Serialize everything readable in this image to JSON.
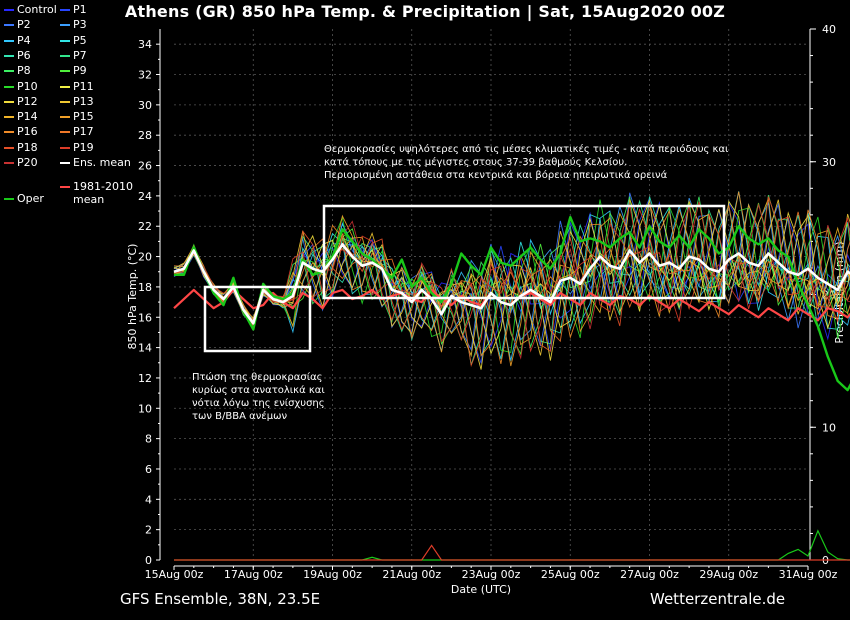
{
  "title": "Athens  (GR)  850 hPa Temp. & Precipitation | Sat, 15Aug2020 00Z",
  "footer": {
    "left": "GFS Ensemble, 38N, 23.5E",
    "right": "Wetterzentrale.de"
  },
  "legend": [
    {
      "name": "Control",
      "color": "#2828ff"
    },
    {
      "name": "P1",
      "color": "#2846ff"
    },
    {
      "name": "P2",
      "color": "#3c78ff"
    },
    {
      "name": "P3",
      "color": "#3ca0ff"
    },
    {
      "name": "P4",
      "color": "#32c8ff"
    },
    {
      "name": "P5",
      "color": "#32e6e6"
    },
    {
      "name": "P6",
      "color": "#32e6b4"
    },
    {
      "name": "P7",
      "color": "#32e68c"
    },
    {
      "name": "P8",
      "color": "#3cf064"
    },
    {
      "name": "P9",
      "color": "#50f03c"
    },
    {
      "name": "P10",
      "color": "#28dc28"
    },
    {
      "name": "P11",
      "color": "#f0f046"
    },
    {
      "name": "P12",
      "color": "#f0dc3c"
    },
    {
      "name": "P13",
      "color": "#f0c832"
    },
    {
      "name": "P14",
      "color": "#f0b428"
    },
    {
      "name": "P15",
      "color": "#f0a028"
    },
    {
      "name": "P16",
      "color": "#f08c28"
    },
    {
      "name": "P17",
      "color": "#f07828"
    },
    {
      "name": "P18",
      "color": "#e65028"
    },
    {
      "name": "P19",
      "color": "#dc3c28"
    },
    {
      "name": "P20",
      "color": "#c83232"
    },
    {
      "name": "Ens. mean",
      "color": "#ffffff"
    },
    {
      "name": "Oper",
      "color": "#19c819"
    },
    {
      "name": "1981-2010 mean",
      "color": "#ff4646"
    }
  ],
  "annotations": {
    "right_lines": [
      "Θερμοκρασίες υψηλότερες από τις μέσες κλιματικές τιμές - κατά περιόδους και",
      "κατά τόπους με τις μέγιστες στους 37-39 βαθμούς Κελσίου.",
      "Περιορισμένη αστάθεια στα κεντρικά και βόρεια ηπειρωτικά ορεινά"
    ],
    "left_lines": [
      "Πτώση της θερμοκρασίας",
      "κυρίως στα ανατολικά και",
      "νότια λόγω της ενίσχυσης",
      "των Β/ΒΒΑ ανέμων"
    ]
  },
  "chart_data": {
    "type": "line",
    "xlabel": "Date (UTC)",
    "ylabel": "850 hPa Temp. (°C)",
    "y2label": "Precipitation (mm)",
    "x_ticks": [
      "15Aug 00z",
      "17Aug 00z",
      "19Aug 00z",
      "21Aug 00z",
      "23Aug 00z",
      "25Aug 00z",
      "27Aug 00z",
      "29Aug 00z",
      "31Aug 00z"
    ],
    "x_range_hours": [
      0,
      384
    ],
    "x_step_hours": 6,
    "ylim": [
      0,
      35
    ],
    "y_ticks": [
      0,
      2,
      4,
      6,
      8,
      10,
      12,
      14,
      16,
      18,
      20,
      22,
      24,
      26,
      28,
      30,
      32,
      34
    ],
    "y2lim": [
      0,
      40
    ],
    "y2_ticks": [
      0,
      10,
      20,
      30,
      40
    ],
    "grid": true,
    "series": [
      {
        "name": "Ens. mean",
        "color": "#ffffff",
        "values": [
          19.0,
          19.2,
          20.4,
          19.0,
          17.8,
          17.2,
          18.0,
          16.5,
          15.6,
          17.8,
          17.2,
          17.0,
          17.4,
          19.6,
          19.2,
          19.0,
          19.8,
          20.8,
          20.0,
          19.4,
          19.6,
          19.2,
          17.8,
          17.6,
          17.0,
          17.8,
          17.2,
          16.2,
          17.4,
          17.0,
          16.8,
          16.6,
          17.6,
          17.0,
          16.8,
          17.4,
          17.8,
          17.4,
          17.0,
          18.4,
          18.6,
          18.2,
          19.2,
          20.0,
          19.4,
          19.2,
          20.4,
          19.6,
          20.2,
          19.4,
          19.6,
          19.2,
          20.0,
          19.8,
          19.2,
          19.0,
          19.8,
          20.2,
          19.6,
          19.4,
          20.2,
          19.6,
          19.0,
          18.8,
          19.2,
          18.6,
          18.2,
          17.8,
          19.0,
          18.6,
          19.6,
          19.2
        ]
      },
      {
        "name": "Oper",
        "color": "#19c819",
        "values": [
          18.8,
          18.8,
          20.6,
          19.0,
          17.6,
          16.8,
          18.6,
          16.4,
          15.2,
          18.2,
          17.4,
          17.2,
          17.6,
          19.8,
          18.8,
          19.0,
          20.0,
          21.8,
          21.0,
          20.2,
          19.8,
          19.2,
          18.6,
          19.8,
          18.0,
          18.6,
          17.6,
          17.0,
          18.2,
          20.2,
          19.4,
          18.8,
          20.6,
          19.6,
          19.4,
          20.0,
          20.6,
          19.8,
          19.2,
          20.2,
          22.6,
          21.0,
          21.2,
          21.0,
          20.6,
          21.2,
          21.6,
          20.6,
          22.0,
          21.0,
          20.6,
          21.4,
          20.6,
          21.8,
          21.2,
          20.2,
          20.6,
          22.0,
          21.2,
          20.8,
          21.2,
          20.4,
          20.0,
          18.2,
          16.8,
          15.4,
          13.4,
          11.8,
          11.2,
          12.4,
          13.2,
          14.0
        ]
      },
      {
        "name": "1981-2010 mean",
        "color": "#ff4646",
        "values": [
          16.6,
          17.2,
          17.8,
          17.2,
          16.6,
          17.0,
          17.8,
          17.2,
          16.6,
          16.8,
          17.6,
          17.0,
          16.6,
          17.6,
          17.2,
          16.6,
          17.6,
          17.8,
          17.2,
          17.4,
          17.8,
          17.2,
          17.4,
          17.6,
          17.2,
          17.0,
          17.8,
          17.2,
          16.8,
          17.4,
          17.0,
          16.8,
          17.6,
          17.0,
          16.8,
          17.4,
          17.6,
          17.2,
          16.8,
          17.6,
          17.2,
          16.8,
          17.6,
          17.2,
          16.8,
          17.4,
          17.2,
          16.8,
          17.4,
          17.0,
          16.6,
          17.2,
          16.8,
          16.4,
          17.0,
          16.6,
          16.2,
          16.8,
          16.4,
          16.0,
          16.6,
          16.2,
          15.8,
          16.6,
          16.2,
          15.8,
          16.6,
          16.4,
          16.0,
          16.8,
          16.6,
          16.2
        ]
      }
    ],
    "precip": {
      "color": "#19c819",
      "values": [
        0,
        0,
        0,
        0,
        0,
        0,
        0,
        0,
        0,
        0,
        0,
        0,
        0,
        0,
        0,
        0,
        0,
        0,
        0,
        0,
        0.2,
        0,
        0,
        0,
        0,
        0,
        0,
        0,
        0,
        0,
        0,
        0,
        0,
        0,
        0,
        0,
        0,
        0,
        0,
        0,
        0,
        0,
        0,
        0,
        0,
        0,
        0,
        0,
        0,
        0,
        0,
        0,
        0,
        0,
        0,
        0,
        0,
        0,
        0,
        0,
        0,
        0,
        0.5,
        0.8,
        0.3,
        2.2,
        0.6,
        0.1,
        0,
        0,
        0,
        0
      ]
    },
    "precip2": {
      "color": "#dc3c28",
      "values": [
        0,
        0,
        0,
        0,
        0,
        0,
        0,
        0,
        0,
        0,
        0,
        0,
        0,
        0,
        0,
        0,
        0,
        0,
        0,
        0,
        0,
        0,
        0,
        0,
        0,
        0,
        1.1,
        0,
        0,
        0,
        0,
        0,
        0,
        0,
        0,
        0,
        0,
        0,
        0,
        0,
        0,
        0,
        0,
        0,
        0,
        0,
        0,
        0,
        0,
        0,
        0,
        0,
        0,
        0,
        0,
        0,
        0,
        0,
        0,
        0,
        0,
        0,
        0,
        0,
        0,
        0,
        0,
        0,
        0,
        0,
        0,
        0
      ]
    }
  }
}
